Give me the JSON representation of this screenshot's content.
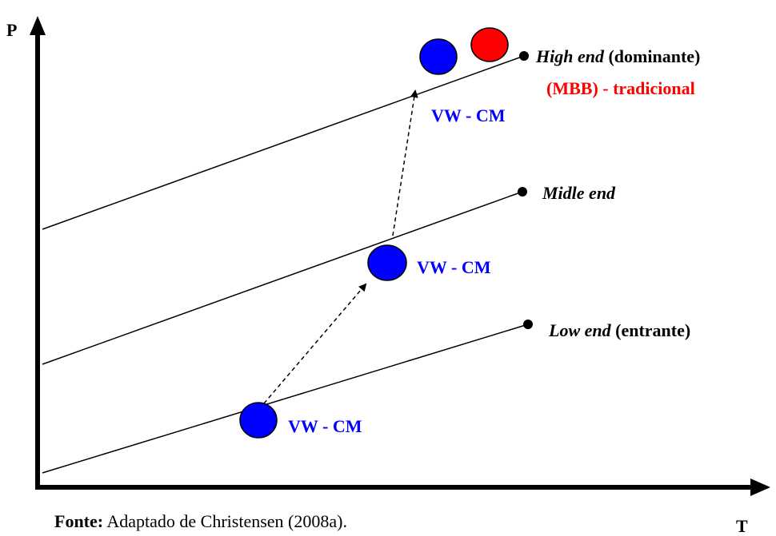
{
  "axes": {
    "y_label": "P",
    "x_label": "T"
  },
  "lines": {
    "high": {
      "italic": "High end",
      "bold": " (dominante)"
    },
    "mid": {
      "italic": "Midle  end",
      "bold": ""
    },
    "low": {
      "italic": "Low  end",
      "bold": " (entrante)"
    }
  },
  "markers": {
    "high_label": "VW - CM",
    "mid_label": "VW - CM",
    "low_label": "VW - CM",
    "traditional_label": "(MBB) - tradicional"
  },
  "colors": {
    "blue": "#0000ff",
    "red": "#ff0000",
    "black": "#000000"
  },
  "caption": {
    "bold": "Fonte:",
    "text": " Adaptado de Christensen (2008a)."
  }
}
